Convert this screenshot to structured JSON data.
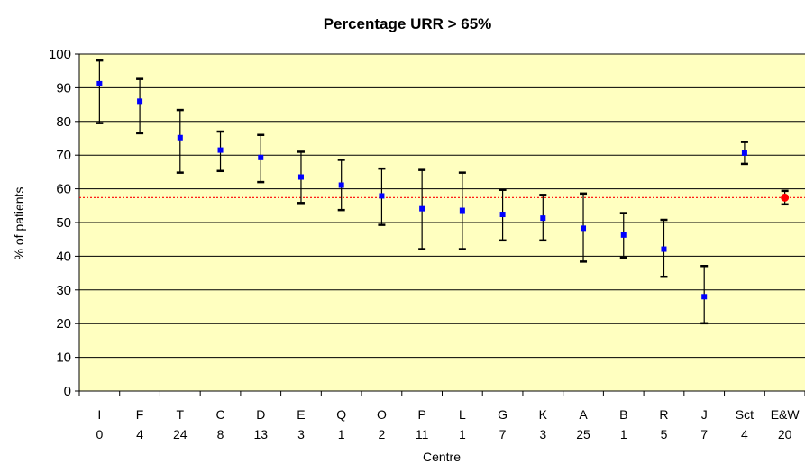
{
  "chart_data": {
    "type": "scatter",
    "title": "Percentage URR > 65%",
    "xlabel": "Centre",
    "ylabel": "% of patients",
    "ylim": [
      0,
      100
    ],
    "yticks": [
      0,
      10,
      20,
      30,
      40,
      50,
      60,
      70,
      80,
      90,
      100
    ],
    "grid": true,
    "categories": [
      "I",
      "F",
      "T",
      "C",
      "D",
      "E",
      "Q",
      "O",
      "P",
      "L",
      "G",
      "K",
      "A",
      "B",
      "R",
      "J",
      "Sct",
      "E&W"
    ],
    "counts": [
      "0",
      "4",
      "24",
      "8",
      "13",
      "3",
      "1",
      "2",
      "11",
      "1",
      "7",
      "3",
      "25",
      "1",
      "5",
      "7",
      "4",
      "20"
    ],
    "values": [
      91.2,
      86.0,
      75.2,
      71.5,
      69.3,
      63.5,
      61.1,
      57.9,
      54.1,
      53.6,
      52.4,
      51.3,
      48.3,
      46.3,
      42.1,
      28.0,
      70.6,
      57.4
    ],
    "lower": [
      79.5,
      76.5,
      64.8,
      65.3,
      62.0,
      55.8,
      53.7,
      49.3,
      42.1,
      42.1,
      44.7,
      44.7,
      38.4,
      39.6,
      33.9,
      20.1,
      67.4,
      55.4
    ],
    "upper": [
      98.1,
      92.6,
      83.4,
      77.0,
      76.0,
      71.0,
      68.6,
      66.0,
      65.6,
      64.8,
      59.7,
      58.2,
      58.6,
      52.8,
      50.8,
      37.1,
      73.9,
      59.4
    ],
    "reference_line": 57.4,
    "colors": {
      "plot_background": "#ffffc0",
      "marker": "#0000ff",
      "highlight_marker": "#ff0000",
      "reference_line": "#ff0000",
      "error_bar": "#000000",
      "grid": "#000000"
    }
  }
}
